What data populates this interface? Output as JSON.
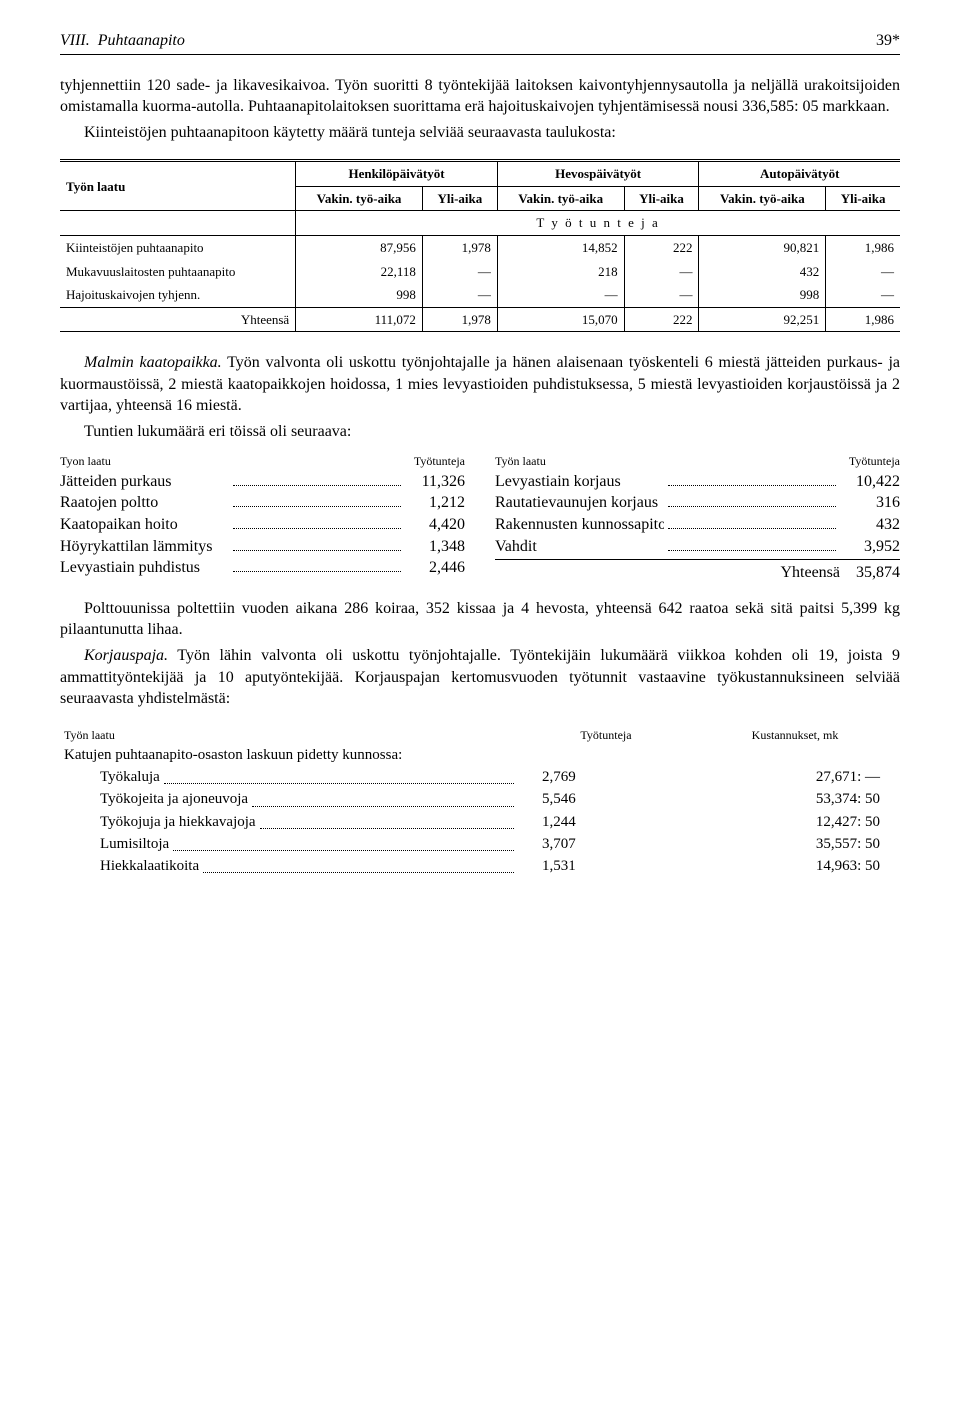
{
  "header": {
    "chapter": "VIII.",
    "title": "Puhtaanapito",
    "page": "39*"
  },
  "para1": "tyhjennettiin 120 sade- ja likavesikaivoa. Työn suoritti 8 työntekijää laitoksen kaivontyhjennysautolla ja neljällä urakoitsijoiden omistamalla kuorma-autolla. Puhtaanapitolaitoksen suorittama erä hajoituskaivojen tyhjentämisessä nousi 336,585: 05 markkaan.",
  "para2": "Kiinteistöjen puhtaanapitoon käytetty määrä tunteja selviää seuraavasta taulukosta:",
  "table1": {
    "col_laatu": "Työn laatu",
    "groups": [
      "Henkilöpäivätyöt",
      "Hevospäivätyöt",
      "Autopäivätyöt"
    ],
    "sub1": "Vakin. työ-aika",
    "sub2": "Yli-aika",
    "unit_row": "T y ö t u n t e j a",
    "rows": [
      {
        "label": "Kiinteistöjen puhtaanapito",
        "v": [
          "87,956",
          "1,978",
          "14,852",
          "222",
          "90,821",
          "1,986"
        ]
      },
      {
        "label": "Mukavuuslaitosten puhtaanapito",
        "v": [
          "22,118",
          "—",
          "218",
          "—",
          "432",
          "—"
        ]
      },
      {
        "label": "Hajoituskaivojen tyhjenn.",
        "v": [
          "998",
          "—",
          "—",
          "—",
          "998",
          "—"
        ]
      }
    ],
    "total_label": "Yhteensä",
    "total": [
      "111,072",
      "1,978",
      "15,070",
      "222",
      "92,251",
      "1,986"
    ]
  },
  "para3a": "Malmin kaatopaikka.",
  "para3b": " Työn valvonta oli uskottu työnjohtajalle ja hänen alaisenaan työskenteli 6 miestä jätteiden purkaus- ja kuormaustöissä, 2 miestä kaatopaikkojen hoidossa, 1 mies levyastioiden puhdistuksessa, 5 miestä levyastioiden korjaustöissä ja 2 vartijaa, yhteensä 16 miestä.",
  "para4": "Tuntien lukumäärä eri töissä oli seuraava:",
  "jobs": {
    "head1": "Tyon laatu",
    "head2": "Työtunteja",
    "head3": "Työn laatu",
    "head4": "Työtunteja",
    "left": [
      {
        "l": "Jätteiden purkaus",
        "v": "11,326"
      },
      {
        "l": "Raatojen poltto",
        "v": "1,212"
      },
      {
        "l": "Kaatopaikan hoito",
        "v": "4,420"
      },
      {
        "l": "Höyrykattilan lämmitys",
        "v": "1,348"
      },
      {
        "l": "Levyastiain puhdistus",
        "v": "2,446"
      }
    ],
    "right": [
      {
        "l": "Levyastiain korjaus",
        "v": "10,422"
      },
      {
        "l": "Rautatievaunujen korjaus",
        "v": "316"
      },
      {
        "l": "Rakennusten kunnossapito .",
        "v": "432"
      },
      {
        "l": "Vahdit",
        "v": "3,952"
      }
    ],
    "sum_label": "Yhteensä",
    "sum": "35,874"
  },
  "para5": "Polttouunissa poltettiin vuoden aikana 286 koiraa, 352 kissaa ja 4 hevosta, yhteensä 642 raatoa sekä sitä paitsi 5,399 kg pilaantunutta lihaa.",
  "para6a": "Korjauspaja.",
  "para6b": " Työn lähin valvonta oli uskottu työnjohtajalle. Työntekijäin lukumäärä viikkoa kohden oli 19, joista 9 ammattityöntekijää ja 10 aputyöntekijää. Korjauspajan kertomusvuoden työtunnit vastaavine työkustannuksineen selviää seuraavasta yhdistelmästä:",
  "cost": {
    "h1": "Työn laatu",
    "h2": "Työtunteja",
    "h3": "Kustannukset, mk",
    "group": "Katujen puhtaanapito-osaston laskuun pidetty kunnossa:",
    "rows": [
      {
        "l": "Työkaluja",
        "t": "2,769",
        "c": "27,671: —"
      },
      {
        "l": "Työkojeita ja ajoneuvoja",
        "t": "5,546",
        "c": "53,374: 50"
      },
      {
        "l": "Työkojuja ja hiekkavajoja",
        "t": "1,244",
        "c": "12,427: 50"
      },
      {
        "l": "Lumisiltoja",
        "t": "3,707",
        "c": "35,557: 50"
      },
      {
        "l": "Hiekkalaatikoita",
        "t": "1,531",
        "c": "14,963: 50"
      }
    ]
  }
}
